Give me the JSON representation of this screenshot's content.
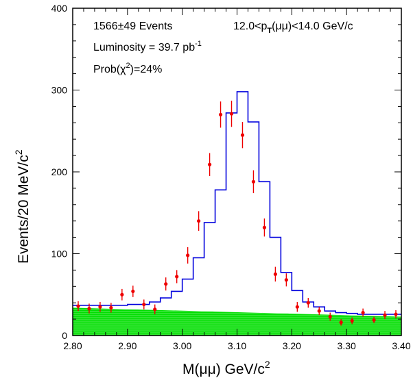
{
  "chart_data": {
    "type": "histogram",
    "title": "",
    "xlabel_main": "M(",
    "xlabel_mu": "μμ",
    "xlabel_unit": ") GeV/c",
    "xlabel_sup": "2",
    "ylabel_main": "Events/20 MeV/c",
    "ylabel_sup": "2",
    "xlim": [
      2.8,
      3.4
    ],
    "ylim": [
      0,
      400
    ],
    "x_ticks": [
      {
        "value": 2.8,
        "label": "2.80"
      },
      {
        "value": 2.9,
        "label": "2.90"
      },
      {
        "value": 3.0,
        "label": "3.00"
      },
      {
        "value": 3.1,
        "label": "3.10"
      },
      {
        "value": 3.2,
        "label": "3.20"
      },
      {
        "value": 3.3,
        "label": "3.30"
      },
      {
        "value": 3.4,
        "label": "3.40"
      }
    ],
    "y_ticks": [
      {
        "value": 0,
        "label": "0"
      },
      {
        "value": 100,
        "label": "100"
      },
      {
        "value": 200,
        "label": "200"
      },
      {
        "value": 300,
        "label": "300"
      },
      {
        "value": 400,
        "label": "400"
      }
    ],
    "annotations": {
      "events": "1566±49 Events",
      "pt_range_prefix": "12.0<p",
      "pt_range_sub": "T",
      "pt_range_suffix": "(μμ)<14.0 GeV/c",
      "luminosity_prefix": "Luminosity = 39.7 pb",
      "luminosity_sup": "-1",
      "prob_prefix": "Prob(χ",
      "prob_sup": "2",
      "prob_suffix": ")=24%"
    },
    "colors": {
      "fit": "#0000dd",
      "data": "#ee0000",
      "background": "#00dd00"
    },
    "background_band": {
      "x": [
        2.8,
        3.4
      ],
      "y_start": [
        34,
        23
      ]
    },
    "fit_histogram": {
      "bin_edges": [
        2.8,
        2.82,
        2.84,
        2.86,
        2.88,
        2.9,
        2.92,
        2.94,
        2.96,
        2.98,
        3.0,
        3.02,
        3.04,
        3.06,
        3.08,
        3.1,
        3.12,
        3.14,
        3.16,
        3.18,
        3.2,
        3.22,
        3.24,
        3.26,
        3.28,
        3.3,
        3.32,
        3.34,
        3.36,
        3.38,
        3.4
      ],
      "values": [
        37,
        37,
        37,
        37,
        37,
        38,
        38,
        41,
        46,
        54,
        69,
        95,
        138,
        178,
        272,
        298,
        261,
        188,
        120,
        77,
        55,
        41,
        35,
        30,
        28,
        27,
        26,
        26,
        26,
        26
      ]
    },
    "data_points": [
      {
        "x": 2.81,
        "y": 36,
        "err": 6
      },
      {
        "x": 2.83,
        "y": 33,
        "err": 6
      },
      {
        "x": 2.85,
        "y": 35,
        "err": 6
      },
      {
        "x": 2.87,
        "y": 34,
        "err": 6
      },
      {
        "x": 2.89,
        "y": 50,
        "err": 7
      },
      {
        "x": 2.91,
        "y": 54,
        "err": 7
      },
      {
        "x": 2.93,
        "y": 38,
        "err": 6
      },
      {
        "x": 2.95,
        "y": 32,
        "err": 6
      },
      {
        "x": 2.97,
        "y": 63,
        "err": 8
      },
      {
        "x": 2.99,
        "y": 72,
        "err": 8
      },
      {
        "x": 3.01,
        "y": 98,
        "err": 10
      },
      {
        "x": 3.03,
        "y": 140,
        "err": 12
      },
      {
        "x": 3.05,
        "y": 209,
        "err": 14
      },
      {
        "x": 3.07,
        "y": 270,
        "err": 16
      },
      {
        "x": 3.09,
        "y": 271,
        "err": 16
      },
      {
        "x": 3.11,
        "y": 245,
        "err": 16
      },
      {
        "x": 3.13,
        "y": 188,
        "err": 14
      },
      {
        "x": 3.15,
        "y": 132,
        "err": 11
      },
      {
        "x": 3.17,
        "y": 75,
        "err": 9
      },
      {
        "x": 3.19,
        "y": 68,
        "err": 8
      },
      {
        "x": 3.21,
        "y": 35,
        "err": 6
      },
      {
        "x": 3.23,
        "y": 40,
        "err": 6
      },
      {
        "x": 3.25,
        "y": 30,
        "err": 5
      },
      {
        "x": 3.27,
        "y": 23,
        "err": 5
      },
      {
        "x": 3.29,
        "y": 16,
        "err": 4
      },
      {
        "x": 3.31,
        "y": 18,
        "err": 4
      },
      {
        "x": 3.33,
        "y": 28,
        "err": 5
      },
      {
        "x": 3.35,
        "y": 19,
        "err": 4
      },
      {
        "x": 3.37,
        "y": 25,
        "err": 5
      },
      {
        "x": 3.39,
        "y": 26,
        "err": 5
      }
    ]
  }
}
